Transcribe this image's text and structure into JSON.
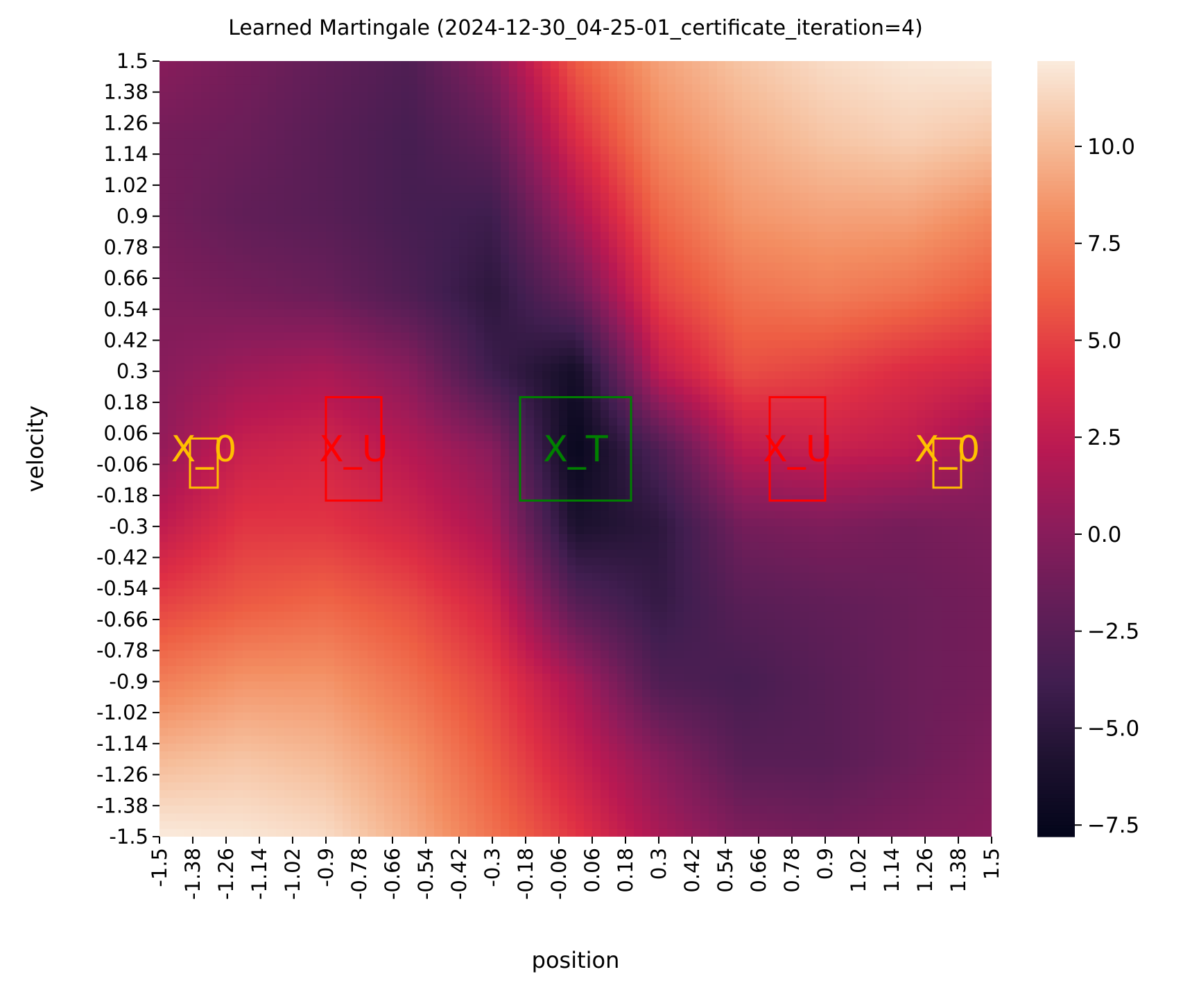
{
  "chart_data": {
    "type": "heatmap",
    "title": "Learned Martingale (2024-12-30_04-25-01_certificate_iteration=4)",
    "xlabel": "position",
    "ylabel": "velocity",
    "xlim": [
      -1.5,
      1.5
    ],
    "ylim": [
      -1.5,
      1.5
    ],
    "x_ticks": [
      "-1.5",
      "-1.38",
      "-1.26",
      "-1.14",
      "-1.02",
      "-0.9",
      "-0.78",
      "-0.66",
      "-0.54",
      "-0.42",
      "-0.3",
      "-0.18",
      "-0.06",
      "0.06",
      "0.18",
      "0.3",
      "0.42",
      "0.54",
      "0.66",
      "0.78",
      "0.9",
      "1.02",
      "1.14",
      "1.26",
      "1.38",
      "1.5"
    ],
    "y_ticks": [
      "1.5",
      "1.38",
      "1.26",
      "1.14",
      "1.02",
      "0.9",
      "0.78",
      "0.66",
      "0.54",
      "0.42",
      "0.3",
      "0.18",
      "0.06",
      "-0.06",
      "-0.18",
      "-0.3",
      "-0.42",
      "-0.54",
      "-0.66",
      "-0.78",
      "-0.9",
      "-1.02",
      "-1.14",
      "-1.26",
      "-1.38",
      "-1.5"
    ],
    "colorbar": {
      "min": -7.8,
      "max": 12.2,
      "ticks": [
        10.0,
        7.5,
        5.0,
        2.5,
        0.0,
        -2.5,
        -5.0,
        -7.5
      ],
      "tick_labels": [
        "10.0",
        "7.5",
        "5.0",
        "2.5",
        "0.0",
        "−2.5",
        "−5.0",
        "−7.5"
      ],
      "colormap": "rocket"
    },
    "value_grid_samples": {
      "x": [
        -1.5,
        -1.2,
        -0.9,
        -0.6,
        -0.3,
        0.0,
        0.3,
        0.6,
        0.9,
        1.2,
        1.5
      ],
      "y": [
        1.5,
        1.2,
        0.9,
        0.6,
        0.3,
        0.0,
        -0.3,
        -0.6,
        -0.9,
        -1.2,
        -1.5
      ],
      "values": [
        [
          0.0,
          -1.0,
          -2.0,
          -3.0,
          0.0,
          6.0,
          9.0,
          10.5,
          11.5,
          12.0,
          12.2
        ],
        [
          -1.0,
          -1.5,
          -2.5,
          -3.5,
          -2.0,
          4.0,
          8.0,
          9.5,
          10.5,
          11.0,
          10.5
        ],
        [
          -1.0,
          -2.0,
          -2.5,
          -3.5,
          -4.0,
          1.5,
          6.5,
          8.5,
          9.0,
          9.0,
          8.0
        ],
        [
          -0.5,
          -1.0,
          -1.5,
          -3.0,
          -5.0,
          -1.5,
          5.0,
          7.0,
          7.5,
          7.0,
          6.0
        ],
        [
          0.0,
          1.0,
          1.5,
          0.0,
          -4.0,
          -6.5,
          2.5,
          5.5,
          5.0,
          4.0,
          3.5
        ],
        [
          0.5,
          3.0,
          3.5,
          2.0,
          0.0,
          -7.5,
          -3.0,
          2.5,
          3.0,
          2.5,
          0.5
        ],
        [
          2.5,
          4.5,
          4.5,
          3.5,
          1.5,
          -6.0,
          -5.0,
          -1.0,
          -0.5,
          -1.0,
          -0.5
        ],
        [
          5.0,
          6.0,
          6.5,
          5.5,
          3.5,
          -2.5,
          -4.5,
          -2.5,
          -2.0,
          -1.5,
          -1.0
        ],
        [
          7.5,
          8.5,
          8.5,
          7.0,
          5.0,
          1.5,
          -3.0,
          -3.5,
          -2.5,
          -1.5,
          -1.0
        ],
        [
          10.0,
          10.5,
          10.0,
          8.5,
          6.0,
          3.0,
          0.0,
          -2.5,
          -2.5,
          -1.5,
          -0.5
        ],
        [
          12.2,
          12.0,
          11.5,
          9.5,
          7.0,
          4.5,
          1.5,
          -0.5,
          -1.0,
          -0.5,
          0.0
        ]
      ]
    },
    "regions": [
      {
        "label": "X_0",
        "x": [
          -1.39,
          -1.29
        ],
        "y": [
          -0.15,
          0.04
        ],
        "color": "#ffc000"
      },
      {
        "label": "X_U",
        "x": [
          -0.9,
          -0.7
        ],
        "y": [
          -0.2,
          0.2
        ],
        "color": "#ff0000"
      },
      {
        "label": "X_T",
        "x": [
          -0.2,
          0.2
        ],
        "y": [
          -0.2,
          0.2
        ],
        "color": "#008000"
      },
      {
        "label": "X_U",
        "x": [
          0.7,
          0.9
        ],
        "y": [
          -0.2,
          0.2
        ],
        "color": "#ff0000"
      },
      {
        "label": "X_0",
        "x": [
          1.29,
          1.39
        ],
        "y": [
          -0.15,
          0.04
        ],
        "color": "#ffc000"
      }
    ],
    "region_label_texts": [
      "X_0",
      "X_U",
      "X_T",
      "X_U",
      "X_0"
    ]
  }
}
